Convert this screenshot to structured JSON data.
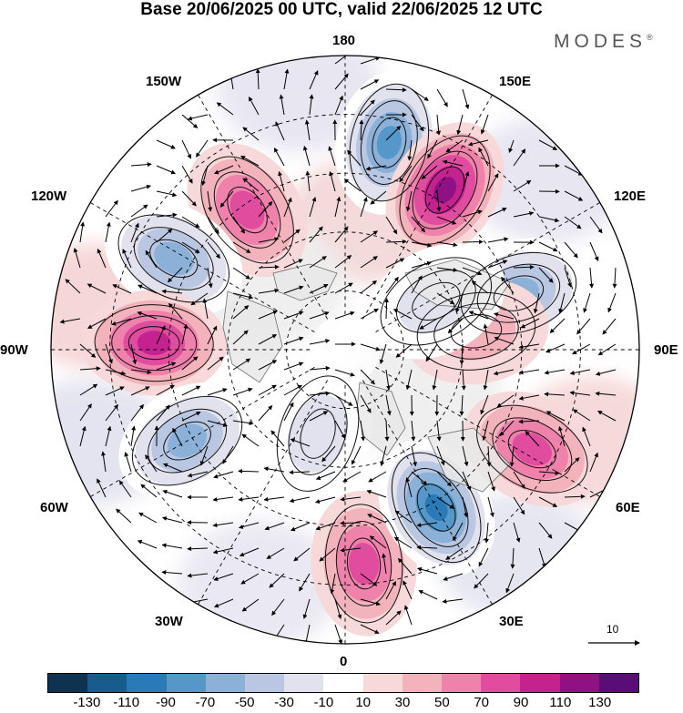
{
  "title": "Base 20/06/2025 00 UTC, valid 22/06/2025 12 UTC",
  "logo": "MODES",
  "logo_mark": "®",
  "lon_labels": {
    "top": "180",
    "bottom": "0",
    "left": "90W",
    "right": "90E",
    "w150": "150W",
    "e150": "150E",
    "w120": "120W",
    "e120": "120E",
    "w60": "60W",
    "e60": "60E",
    "w30": "30W",
    "e30": "30E"
  },
  "reference_vector": "10",
  "colorbar": {
    "colors": [
      "#0e3350",
      "#185b8f",
      "#2a7ab8",
      "#5597c8",
      "#8cb1d8",
      "#b9c7e2",
      "#e2e2ef",
      "#ffffff",
      "#f8d9d9",
      "#f3b3bc",
      "#ee82aa",
      "#e04c9e",
      "#c4228f",
      "#8f1184",
      "#5a0d79"
    ],
    "ticks": [
      "-130",
      "-110",
      "-90",
      "-70",
      "-50",
      "-30",
      "-10",
      "10",
      "30",
      "50",
      "70",
      "90",
      "110",
      "130"
    ]
  },
  "anomalies": [
    {
      "lon": 168,
      "r": 0.72,
      "value": -95
    },
    {
      "lon": -145,
      "r": 0.58,
      "value": 70
    },
    {
      "lon": 148,
      "r": 0.64,
      "value": 100
    },
    {
      "lon": -118,
      "r": 0.66,
      "value": -60
    },
    {
      "lon": -92,
      "r": 0.65,
      "value": 80
    },
    {
      "lon": -60,
      "r": 0.62,
      "value": -75
    },
    {
      "lon": -18,
      "r": 0.3,
      "value": -35
    },
    {
      "lon": 5,
      "r": 0.73,
      "value": 60
    },
    {
      "lon": 30,
      "r": 0.62,
      "value": -110
    },
    {
      "lon": 62,
      "r": 0.72,
      "value": 75
    },
    {
      "lon": 108,
      "r": 0.62,
      "value": -60
    },
    {
      "lon": 98,
      "r": 0.45,
      "value": 30
    },
    {
      "lon": 118,
      "r": 0.35,
      "value": -20
    }
  ]
}
